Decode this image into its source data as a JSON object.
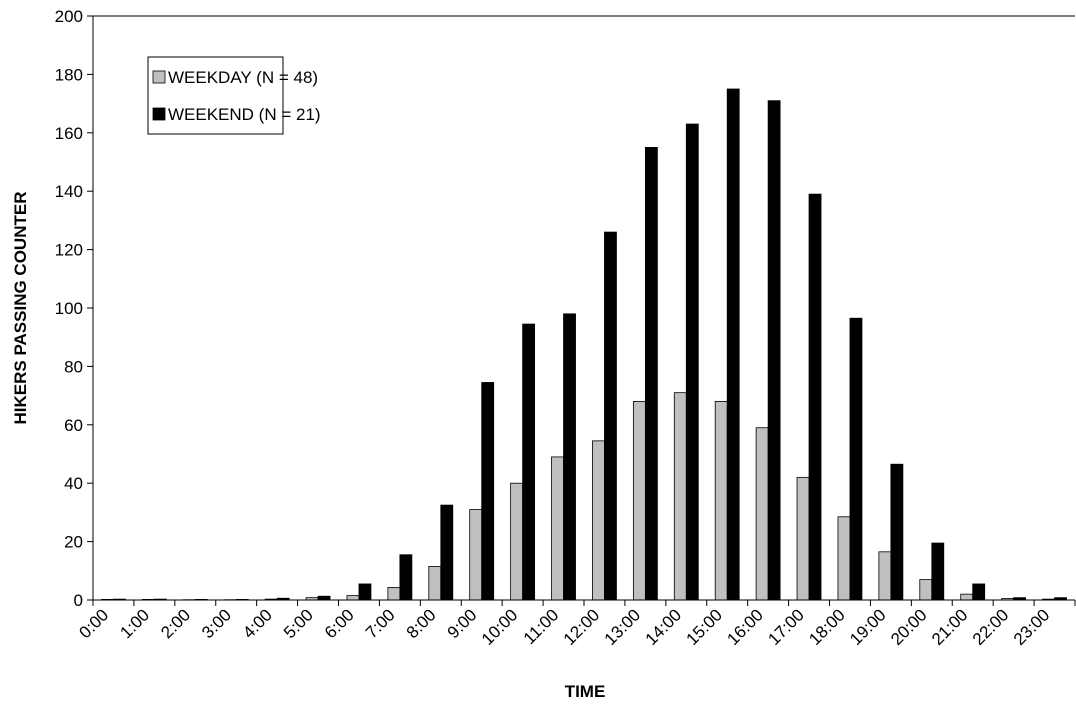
{
  "chart_data": {
    "type": "bar",
    "x_label": "TIME",
    "y_label": "HIKERS PASSING COUNTER",
    "categories": [
      "0:00",
      "1:00",
      "2:00",
      "3:00",
      "4:00",
      "5:00",
      "6:00",
      "7:00",
      "8:00",
      "9:00",
      "10:00",
      "11:00",
      "12:00",
      "13:00",
      "14:00",
      "15:00",
      "16:00",
      "17:00",
      "18:00",
      "19:00",
      "20:00",
      "21:00",
      "22:00",
      "23:00"
    ],
    "series": [
      {
        "name": "WEEKDAY (N = 48)",
        "color": "#c0c0c0",
        "values": [
          0.2,
          0.2,
          0.1,
          0.1,
          0.3,
          0.8,
          1.5,
          4.3,
          11.5,
          31,
          40,
          49,
          54.5,
          68,
          71,
          68,
          59,
          42,
          28.5,
          16.5,
          7,
          2,
          0.5,
          0.3
        ]
      },
      {
        "name": "WEEKEND (N = 21)",
        "color": "#000000",
        "values": [
          0.3,
          0.3,
          0.2,
          0.2,
          0.6,
          1.3,
          5.5,
          15.5,
          32.5,
          74.5,
          94.5,
          98,
          126,
          155,
          163,
          175,
          171,
          139,
          96.5,
          46.5,
          19.5,
          5.5,
          0.8,
          0.8
        ]
      }
    ],
    "ylim": [
      0,
      200
    ],
    "yticks": [
      0,
      20,
      40,
      60,
      80,
      100,
      120,
      140,
      160,
      180,
      200
    ],
    "legend": "upper left",
    "grid": false
  }
}
